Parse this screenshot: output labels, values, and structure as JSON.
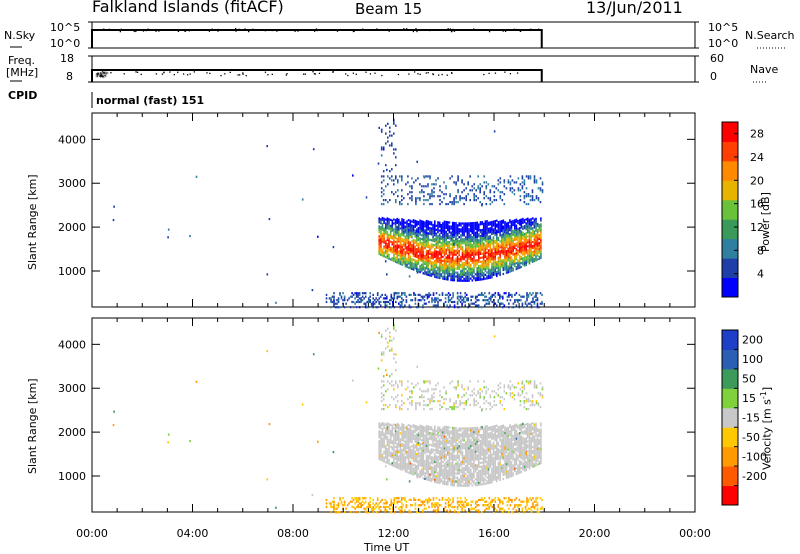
{
  "header": {
    "title": "Falkland Islands (fitACF)",
    "beam": "Beam 15",
    "date": "13/Jun/2011"
  },
  "colors": {
    "power_scale": [
      "#0000ff",
      "#1e3fa8",
      "#2f7fa0",
      "#3a9a5a",
      "#6ac23a",
      "#e6b400",
      "#ff8a00",
      "#ff4000",
      "#ff0000"
    ],
    "velocity_scale": [
      "#ff0000",
      "#ff5a00",
      "#ff9a00",
      "#ffc800",
      "#c8c8c8",
      "#7fd23c",
      "#3c9a5a",
      "#2a5fb4",
      "#1e3fc8"
    ],
    "ground_scatter": "#c8c8c8"
  },
  "panels": {
    "nsky": {
      "left_label": "N.Sky",
      "right_label": "N.Search",
      "ticks_left": [
        "10^5",
        "10^0"
      ],
      "ticks_right": [
        "10^5",
        "10^0"
      ]
    },
    "freq": {
      "left_label_1": "Freq.",
      "left_label_2": "[MHz]",
      "right_label": "Nave",
      "ticks_left": [
        "18",
        "8"
      ],
      "ticks_right": [
        "60",
        "0"
      ]
    },
    "cpid": {
      "label": "CPID",
      "value": "normal (fast) 151"
    }
  },
  "chart_data": [
    {
      "type": "heatmap",
      "name": "power",
      "ylabel": "Slant Range [km]",
      "xlabel": "Time UT",
      "x_ticks": [
        "00:00",
        "04:00",
        "08:00",
        "12:00",
        "16:00",
        "20:00",
        "00:00"
      ],
      "x_range_hours": [
        0,
        24
      ],
      "y_ticks": [
        1000,
        2000,
        3000,
        4000
      ],
      "y_range": [
        180,
        4600
      ],
      "colorbar_label": "Power [dB]",
      "colorbar_ticks": [
        4,
        8,
        12,
        16,
        20,
        24,
        28
      ],
      "colorbar_range": [
        0,
        30
      ]
    },
    {
      "type": "heatmap",
      "name": "velocity",
      "ylabel": "Slant Range [km]",
      "xlabel": "Time UT",
      "x_ticks": [
        "00:00",
        "04:00",
        "08:00",
        "12:00",
        "16:00",
        "20:00",
        "00:00"
      ],
      "x_range_hours": [
        0,
        24
      ],
      "y_ticks": [
        1000,
        2000,
        3000,
        4000
      ],
      "y_range": [
        180,
        4600
      ],
      "colorbar_label": "Velocity [m s",
      "colorbar_label_exponent": "-1",
      "colorbar_label_end": "]",
      "colorbar_ticks": [
        "200",
        "100",
        "50",
        "15",
        "-15",
        "-50",
        "-100",
        "-200"
      ]
    }
  ]
}
